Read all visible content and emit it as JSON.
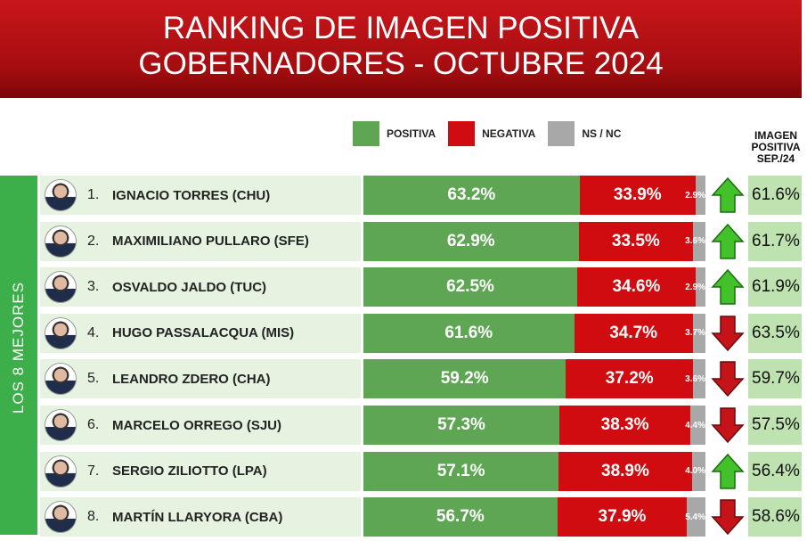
{
  "chart_data": {
    "type": "bar",
    "stacked": true,
    "orientation": "horizontal",
    "title": [
      "RANKING DE IMAGEN POSITIVA",
      "GOBERNADORES - OCTUBRE 2024"
    ],
    "group_label": "LOS 8 MEJORES",
    "legend": [
      {
        "name": "POSITIVA",
        "color": "#5fa654"
      },
      {
        "name": "NEGATIVA",
        "color": "#d00c10"
      },
      {
        "name": "NS / NC",
        "color": "#a8a8a8"
      }
    ],
    "sep_header": "IMAGEN POSITIVA SEP./24",
    "rows": [
      {
        "rank": "1.",
        "name": "IGNACIO TORRES (CHU)",
        "pos": 63.2,
        "neg": 33.9,
        "ns": 2.9,
        "trend": "up",
        "sep": 61.6
      },
      {
        "rank": "2.",
        "name": "MAXIMILIANO PULLARO (SFE)",
        "pos": 62.9,
        "neg": 33.5,
        "ns": 3.6,
        "trend": "up",
        "sep": 61.7
      },
      {
        "rank": "3.",
        "name": "OSVALDO JALDO (TUC)",
        "pos": 62.5,
        "neg": 34.6,
        "ns": 2.9,
        "trend": "up",
        "sep": 61.9
      },
      {
        "rank": "4.",
        "name": "HUGO PASSALACQUA (MIS)",
        "pos": 61.6,
        "neg": 34.7,
        "ns": 3.7,
        "trend": "down",
        "sep": 63.5
      },
      {
        "rank": "5.",
        "name": "LEANDRO ZDERO (CHA)",
        "pos": 59.2,
        "neg": 37.2,
        "ns": 3.6,
        "trend": "down",
        "sep": 59.7
      },
      {
        "rank": "6.",
        "name": "MARCELO ORREGO (SJU)",
        "pos": 57.3,
        "neg": 38.3,
        "ns": 4.4,
        "trend": "down",
        "sep": 57.5
      },
      {
        "rank": "7.",
        "name": "SERGIO ZILIOTTO (LPA)",
        "pos": 57.1,
        "neg": 38.9,
        "ns": 4.0,
        "trend": "up",
        "sep": 56.4
      },
      {
        "rank": "8.",
        "name": "MARTÍN LLARYORA (CBA)",
        "pos": 56.7,
        "neg": 37.9,
        "ns": 5.4,
        "trend": "down",
        "sep": 58.6
      }
    ]
  }
}
